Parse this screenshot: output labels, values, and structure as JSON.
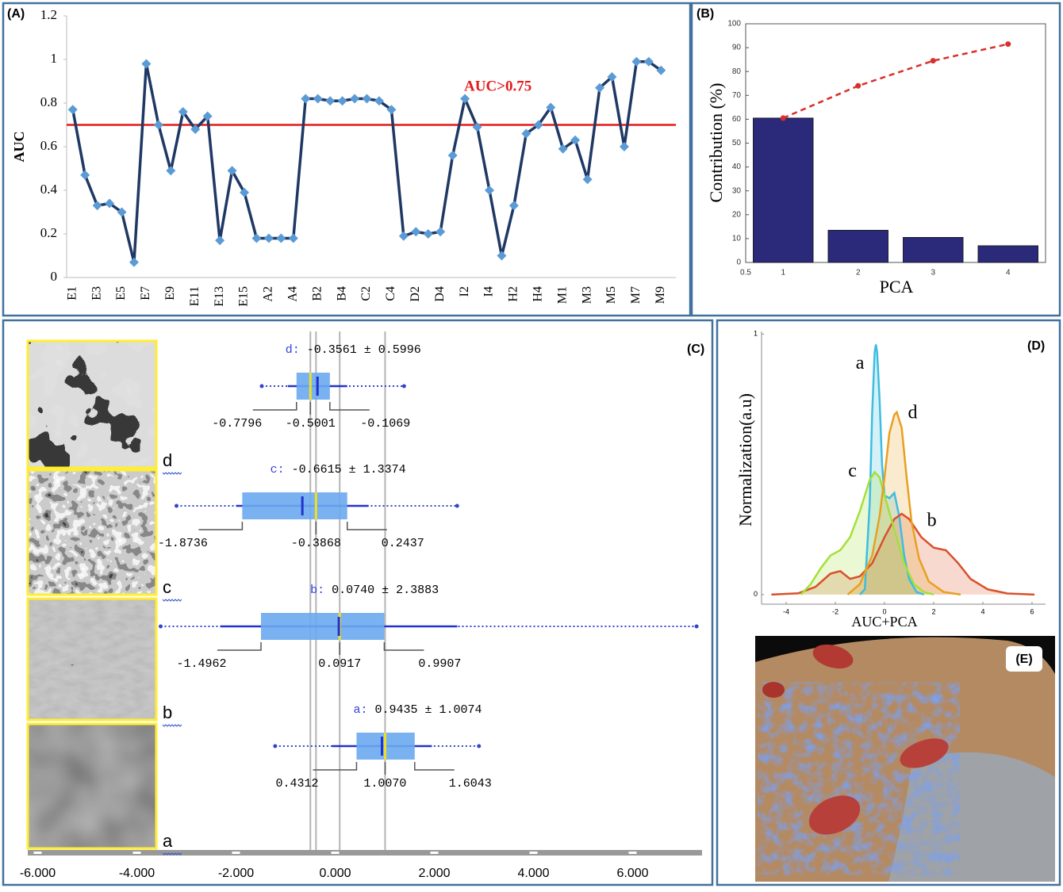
{
  "chart_data": [
    {
      "type": "line",
      "label": "(A)",
      "ylabel": "AUC",
      "categories": [
        "E1",
        null,
        "E3",
        null,
        "E5",
        null,
        "E7",
        null,
        "E9",
        null,
        "E11",
        null,
        "E13",
        null,
        "E15",
        null,
        "A2",
        null,
        "A4",
        null,
        "B2",
        null,
        "B4",
        null,
        "C2",
        null,
        "C4",
        null,
        "D2",
        null,
        "D4",
        null,
        "I2",
        null,
        "I4",
        null,
        "H2",
        null,
        "H4",
        null,
        "M1",
        null,
        "M3",
        null,
        "M5",
        null,
        "M7",
        null,
        "M9"
      ],
      "values": [
        0.77,
        0.47,
        0.33,
        0.34,
        0.3,
        0.07,
        0.98,
        0.7,
        0.49,
        0.76,
        0.68,
        0.74,
        0.17,
        0.49,
        0.39,
        0.18,
        0.18,
        0.18,
        0.18,
        0.82,
        0.82,
        0.81,
        0.81,
        0.82,
        0.82,
        0.81,
        0.77,
        0.19,
        0.21,
        0.2,
        0.21,
        0.56,
        0.82,
        0.69,
        0.4,
        0.1,
        0.33,
        0.66,
        0.7,
        0.78,
        0.59,
        0.63,
        0.45,
        0.87,
        0.92,
        0.6,
        0.99,
        0.99,
        0.95
      ],
      "color": "#1f3864",
      "marker_color": "#5b9bd5",
      "ylim": [
        0,
        1.2
      ],
      "yticks": [
        0,
        0.2,
        0.4,
        0.6,
        0.8,
        1,
        1.2
      ],
      "hline": 0.7,
      "hline_color": "#e31b1b",
      "annotation": "AUC>0.75"
    },
    {
      "type": "bar",
      "label": "(B)",
      "xlabel": "PCA",
      "ylabel": "Contribution (%)",
      "x": [
        1,
        2,
        3,
        4
      ],
      "series": [
        {
          "type": "bar",
          "color": "#2b2a7a",
          "values": [
            60.5,
            13.5,
            10.5,
            7
          ]
        },
        {
          "type": "line",
          "color": "#d9302c",
          "values": [
            60.5,
            74,
            84.5,
            91.5
          ]
        }
      ],
      "xlim": [
        0.5,
        4.5
      ],
      "xticks": [
        0.5,
        1,
        2,
        3,
        4
      ],
      "ylim": [
        0,
        100
      ],
      "yticks": [
        0,
        10,
        20,
        30,
        40,
        50,
        60,
        70,
        80,
        90,
        100
      ]
    },
    {
      "type": "box",
      "label": "(C)",
      "groups": [
        {
          "name": "d",
          "title": "d: -0.3561 ± 0.5996",
          "mean": -0.3561,
          "sd": 0.5996,
          "q1": -0.7796,
          "median": -0.5001,
          "q3": -0.1069,
          "min": -1.48,
          "max": 1.39,
          "value_labels": [
            "-0.7796",
            "-0.5001",
            "-0.1069"
          ]
        },
        {
          "name": "c",
          "title": "c: -0.6615 ± 1.3374",
          "mean": -0.6615,
          "sd": 1.3374,
          "q1": -1.8736,
          "median": -0.3868,
          "q3": 0.2437,
          "min": -3.2,
          "max": 2.46,
          "value_labels": [
            "-1.8736",
            "-0.3868",
            "0.2437"
          ]
        },
        {
          "name": "b",
          "title": "b: 0.0740 ± 2.3883",
          "mean": 0.074,
          "sd": 2.3883,
          "q1": -1.4962,
          "median": 0.0917,
          "q3": 0.9907,
          "min": -3.52,
          "max": 7.29,
          "value_labels": [
            "-1.4962",
            "0.0917",
            "0.9907"
          ]
        },
        {
          "name": "a",
          "title": "a: 0.9435 ± 1.0074",
          "mean": 0.9435,
          "sd": 1.0074,
          "q1": 0.4312,
          "median": 1.007,
          "q3": 1.6043,
          "min": -1.21,
          "max": 2.9,
          "value_labels": [
            "0.4312",
            "1.0070",
            "1.6043"
          ]
        }
      ],
      "xlim": [
        -6.2,
        7.4
      ],
      "xticks": [
        {
          "value": -6,
          "label": "-6.000"
        },
        {
          "value": -4,
          "label": "-4.000"
        },
        {
          "value": -2,
          "label": "-2.000"
        },
        {
          "value": 0,
          "label": "0.000"
        },
        {
          "value": 2,
          "label": "2.000"
        },
        {
          "value": 4,
          "label": "4.000"
        },
        {
          "value": 6,
          "label": "6.000"
        }
      ]
    },
    {
      "type": "density",
      "label": "(D)",
      "xlabel": "AUC+PCA",
      "ylabel": "Normalization(a.u)",
      "series": [
        {
          "name": "a",
          "color": "#3dbde0",
          "x": [
            -1.0,
            -0.8,
            -0.6,
            -0.5,
            -0.4,
            -0.35,
            -0.3,
            -0.2,
            -0.1,
            0,
            0.2,
            0.4,
            0.6,
            0.8,
            1.0,
            1.3,
            1.6
          ],
          "values": [
            0,
            0.02,
            0.35,
            0.7,
            0.93,
            0.96,
            0.93,
            0.75,
            0.5,
            0.38,
            0.37,
            0.39,
            0.3,
            0.15,
            0.06,
            0.01,
            0
          ]
        },
        {
          "name": "b",
          "color": "#d9512a",
          "x": [
            -4.6,
            -3.5,
            -2.8,
            -2.2,
            -1.8,
            -1.4,
            -1.0,
            -0.5,
            0,
            0.4,
            0.7,
            1.0,
            1.5,
            2.0,
            2.5,
            3.0,
            3.5,
            4.2,
            5.0,
            6.1
          ],
          "values": [
            0,
            0.005,
            0.03,
            0.08,
            0.09,
            0.06,
            0.07,
            0.12,
            0.22,
            0.29,
            0.31,
            0.29,
            0.22,
            0.18,
            0.17,
            0.12,
            0.06,
            0.02,
            0.004,
            0
          ]
        },
        {
          "name": "c",
          "color": "#a4e03a",
          "x": [
            -3.4,
            -3.0,
            -2.6,
            -2.2,
            -1.8,
            -1.4,
            -1.0,
            -0.6,
            -0.4,
            -0.2,
            0,
            0.4,
            0.8,
            1.2,
            1.6,
            2.0
          ],
          "values": [
            0,
            0.04,
            0.1,
            0.15,
            0.17,
            0.22,
            0.32,
            0.44,
            0.47,
            0.45,
            0.38,
            0.25,
            0.12,
            0.04,
            0.01,
            0
          ]
        },
        {
          "name": "d",
          "color": "#e8a020",
          "x": [
            -1.5,
            -1.0,
            -0.5,
            -0.2,
            0,
            0.2,
            0.4,
            0.5,
            0.7,
            0.9,
            1.1,
            1.4,
            1.8,
            2.4,
            3.1
          ],
          "values": [
            0,
            0.04,
            0.15,
            0.3,
            0.45,
            0.62,
            0.69,
            0.7,
            0.64,
            0.45,
            0.28,
            0.14,
            0.05,
            0.01,
            0
          ]
        }
      ],
      "xlim": [
        -5,
        6.55
      ],
      "xticks": [
        -4,
        -2,
        0,
        2,
        4,
        6
      ],
      "ylim": [
        -0.037,
        1.01
      ],
      "yticks": [
        0,
        1
      ]
    }
  ],
  "panel_e": {
    "label": "(E)"
  }
}
